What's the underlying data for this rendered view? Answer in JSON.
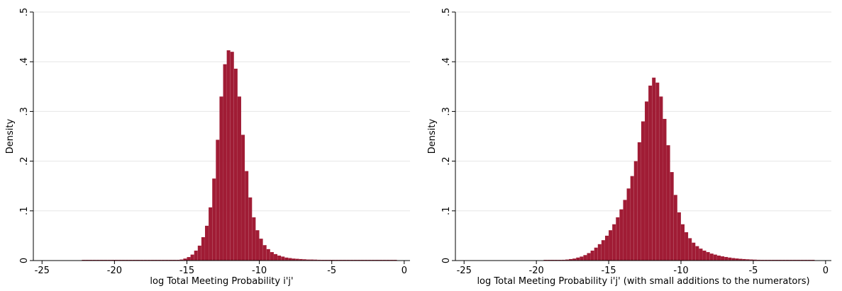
{
  "colors": {
    "bar": "#A01C35",
    "grid": "#E6E6E6",
    "axis": "#000000",
    "background": "#FFFFFF"
  },
  "chart_data": [
    {
      "type": "bar",
      "subtype": "histogram",
      "xlabel": "log Total Meeting Probability i'j'",
      "ylabel": "Density",
      "xlim": [
        -25.6,
        0.4
      ],
      "ylim": [
        0,
        0.5
      ],
      "xticks": [
        -25,
        -20,
        -15,
        -10,
        -5,
        0
      ],
      "xtick_labels": [
        "-25",
        "-20",
        "-15",
        "-10",
        "-5",
        "0"
      ],
      "yticks": [
        0,
        0.1,
        0.2,
        0.3,
        0.4,
        0.5
      ],
      "ytick_labels": [
        "0",
        ".1",
        ".2",
        ".3",
        ".4",
        ".5"
      ],
      "grid": true,
      "bin_width": 0.25,
      "bin_starts": [
        -22.25,
        -22,
        -21.75,
        -21.5,
        -21.25,
        -21,
        -20.75,
        -20.5,
        -20.25,
        -20,
        -19.75,
        -19.5,
        -19.25,
        -19,
        -18.75,
        -18.5,
        -18.25,
        -18,
        -17.75,
        -17.5,
        -17.25,
        -17,
        -16.75,
        -16.5,
        -16.25,
        -16,
        -15.75,
        -15.5,
        -15.25,
        -15,
        -14.75,
        -14.5,
        -14.25,
        -14,
        -13.75,
        -13.5,
        -13.25,
        -13,
        -12.75,
        -12.5,
        -12.25,
        -12,
        -11.75,
        -11.5,
        -11.25,
        -11,
        -10.75,
        -10.5,
        -10.25,
        -10,
        -9.75,
        -9.5,
        -9.25,
        -9,
        -8.75,
        -8.5,
        -8.25,
        -8,
        -7.75,
        -7.5,
        -7.25,
        -7,
        -6.75,
        -6.5,
        -6.25,
        -6,
        -5.75,
        -5.5,
        -5.25,
        -5,
        -4.75,
        -4.5,
        -4.25,
        -4,
        -3.75,
        -3.5,
        -3.25,
        -3,
        -2.75,
        -2.5,
        -2.25,
        -2,
        -1.75,
        -1.5,
        -1.25,
        -1,
        -0.75
      ],
      "values": [
        0.0005,
        0.0005,
        0.0005,
        0.0005,
        0.0005,
        0.0005,
        0.0005,
        0.0005,
        0.0005,
        0.0005,
        0.0005,
        0.0005,
        0.0005,
        0.0005,
        0.0005,
        0.0005,
        0.0005,
        0.0005,
        0.0005,
        0.0005,
        0.0005,
        0.0005,
        0.0005,
        0.0005,
        0.0005,
        0.0005,
        0.001,
        0.002,
        0.004,
        0.007,
        0.012,
        0.02,
        0.03,
        0.047,
        0.07,
        0.107,
        0.165,
        0.243,
        0.33,
        0.395,
        0.423,
        0.42,
        0.386,
        0.33,
        0.253,
        0.18,
        0.127,
        0.087,
        0.061,
        0.044,
        0.031,
        0.023,
        0.017,
        0.013,
        0.01,
        0.008,
        0.006,
        0.005,
        0.004,
        0.0035,
        0.003,
        0.0025,
        0.002,
        0.002,
        0.0018,
        0.0015,
        0.0013,
        0.0012,
        0.001,
        0.001,
        0.0009,
        0.0008,
        0.0007,
        0.0007,
        0.0006,
        0.0006,
        0.0005,
        0.0005,
        0.0005,
        0.0005,
        0.0005,
        0.0005,
        0.0005,
        0.0005,
        0.0005,
        0.0005,
        0.0005
      ]
    },
    {
      "type": "bar",
      "subtype": "histogram",
      "xlabel": "log Total Meeting Probability i'j' (with small additions to the numerators)",
      "ylabel": "Density",
      "xlim": [
        -25.6,
        0.4
      ],
      "ylim": [
        0,
        0.5
      ],
      "xticks": [
        -25,
        -20,
        -15,
        -10,
        -5,
        0
      ],
      "xtick_labels": [
        "-25",
        "-20",
        "-15",
        "-10",
        "-5",
        "0"
      ],
      "yticks": [
        0,
        0.1,
        0.2,
        0.3,
        0.4,
        0.5
      ],
      "ytick_labels": [
        "0",
        ".1",
        ".2",
        ".3",
        ".4",
        ".5"
      ],
      "grid": true,
      "bin_width": 0.25,
      "bin_starts": [
        -19.5,
        -19.25,
        -19,
        -18.75,
        -18.5,
        -18.25,
        -18,
        -17.75,
        -17.5,
        -17.25,
        -17,
        -16.75,
        -16.5,
        -16.25,
        -16,
        -15.75,
        -15.5,
        -15.25,
        -15,
        -14.75,
        -14.5,
        -14.25,
        -14,
        -13.75,
        -13.5,
        -13.25,
        -13,
        -12.75,
        -12.5,
        -12.25,
        -12,
        -11.75,
        -11.5,
        -11.25,
        -11,
        -10.75,
        -10.5,
        -10.25,
        -10,
        -9.75,
        -9.5,
        -9.25,
        -9,
        -8.75,
        -8.5,
        -8.25,
        -8,
        -7.75,
        -7.5,
        -7.25,
        -7,
        -6.75,
        -6.5,
        -6.25,
        -6,
        -5.75,
        -5.5,
        -5.25,
        -5,
        -4.75,
        -4.5,
        -4.25,
        -4,
        -3.75,
        -3.5,
        -3.25,
        -3,
        -2.75,
        -2.5,
        -2.25,
        -2,
        -1.75,
        -1.5,
        -1.25,
        -1
      ],
      "values": [
        0.0005,
        0.0005,
        0.0005,
        0.0008,
        0.001,
        0.0015,
        0.002,
        0.003,
        0.004,
        0.006,
        0.008,
        0.011,
        0.015,
        0.02,
        0.026,
        0.033,
        0.041,
        0.05,
        0.061,
        0.073,
        0.087,
        0.103,
        0.122,
        0.145,
        0.17,
        0.2,
        0.238,
        0.28,
        0.32,
        0.352,
        0.368,
        0.358,
        0.33,
        0.285,
        0.232,
        0.178,
        0.132,
        0.097,
        0.073,
        0.057,
        0.045,
        0.036,
        0.029,
        0.024,
        0.02,
        0.017,
        0.014,
        0.012,
        0.01,
        0.0085,
        0.0072,
        0.006,
        0.005,
        0.0042,
        0.0035,
        0.003,
        0.0025,
        0.0021,
        0.0018,
        0.0015,
        0.0013,
        0.0011,
        0.001,
        0.0009,
        0.0008,
        0.0007,
        0.0006,
        0.0006,
        0.0005,
        0.0005,
        0.0005,
        0.0005,
        0.0005,
        0.0005,
        0.0005
      ]
    }
  ]
}
